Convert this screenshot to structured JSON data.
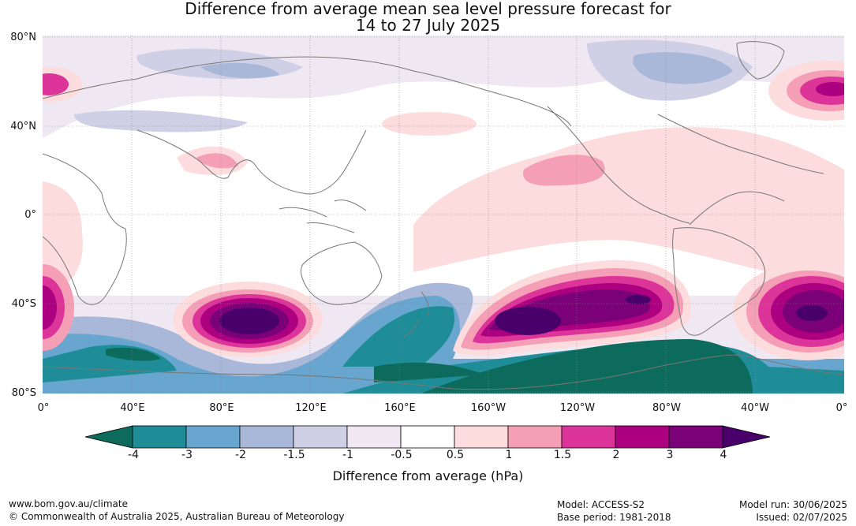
{
  "title_line1": "Difference from average mean sea level pressure forecast for",
  "title_line2": "14 to 27 July 2025",
  "lat_labels": [
    "80°N",
    "40°N",
    "0°",
    "40°S",
    "80°S"
  ],
  "lon_labels": [
    "0°",
    "40°E",
    "80°E",
    "120°E",
    "160°E",
    "160°W",
    "120°W",
    "80°W",
    "40°W",
    "0°"
  ],
  "colorbar": {
    "ticks": [
      "-4",
      "-3",
      "-2",
      "-1.5",
      "-1",
      "-0.5",
      "0.5",
      "1",
      "1.5",
      "2",
      "3",
      "4"
    ],
    "colors": [
      "#0c6b5c",
      "#1e8d97",
      "#68a6cf",
      "#a9b8d8",
      "#cfd0e6",
      "#efe7f1",
      "#ffffff",
      "#fcdcdd",
      "#f59fb6",
      "#dd3499",
      "#ad0081",
      "#7a0177",
      "#49006a"
    ],
    "label": "Difference from average (hPa)"
  },
  "footer": {
    "url": "www.bom.gov.au/climate",
    "copyright": "© Commonwealth of Australia 2025, Australian Bureau of Meteorology",
    "model": "Model: ACCESS-S2",
    "base_period": "Base period: 1981-2018",
    "model_run": "Model run: 30/06/2025",
    "issued": "Issued: 02/07/2025"
  }
}
